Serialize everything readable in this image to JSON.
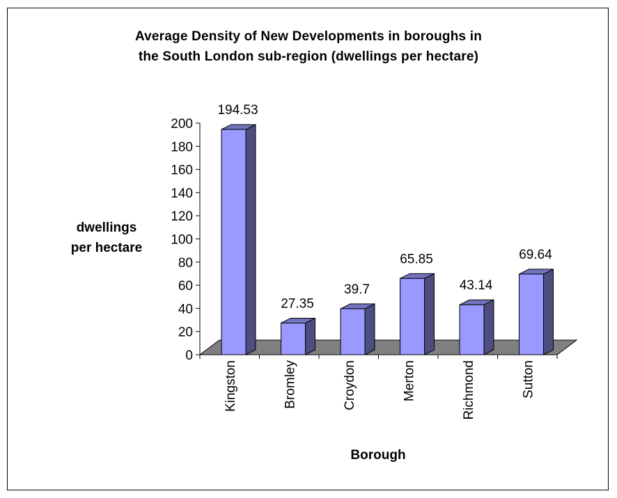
{
  "chart_data": {
    "type": "bar",
    "title_lines": [
      "Average Density of New Developments in boroughs in",
      "the South London sub-region (dwellings per hectare)"
    ],
    "ylabel_lines": [
      "dwellings",
      "per hectare"
    ],
    "xlabel": "Borough",
    "categories": [
      "Kingston",
      "Bromley",
      "Croydon",
      "Merton",
      "Richmond",
      "Sutton"
    ],
    "values": [
      194.53,
      27.35,
      39.7,
      65.85,
      43.14,
      69.64
    ],
    "data_labels": [
      "194.53",
      "27.35",
      "39.7",
      "65.85",
      "43.14",
      "69.64"
    ],
    "ylim": [
      0,
      200
    ],
    "yticks": [
      0,
      20,
      40,
      60,
      80,
      100,
      120,
      140,
      160,
      180,
      200
    ],
    "grid": false,
    "legend": "none",
    "style": "3d-column",
    "colors": {
      "bar_front": "#9999ff",
      "bar_side": "#4d4d80",
      "bar_top": "#7373bf",
      "floor": "#808080",
      "axis": "#000000"
    }
  }
}
